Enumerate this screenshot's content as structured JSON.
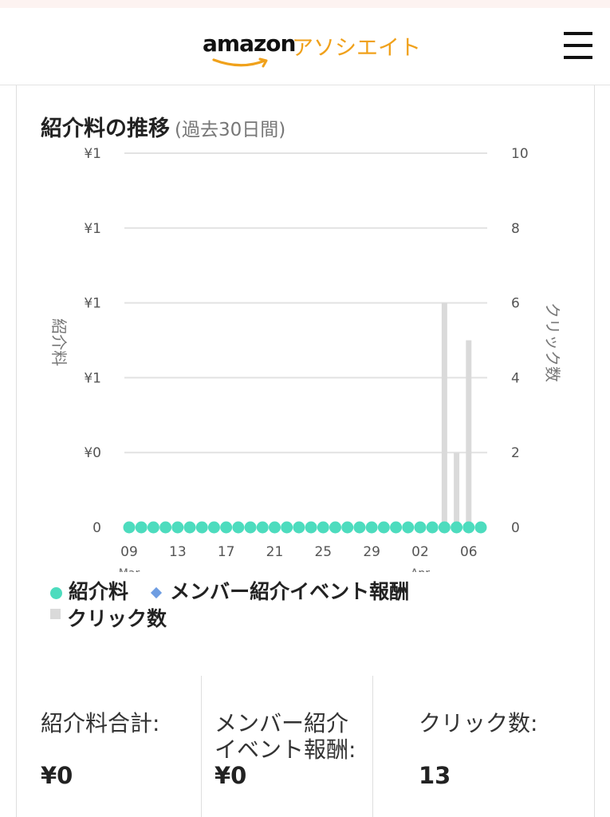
{
  "header": {
    "logo_amazon": "amazon",
    "logo_suffix": "アソシエイト",
    "menu_icon": "hamburger-menu-icon"
  },
  "card": {
    "title": "紹介料の推移",
    "subtitle": "(過去30日間)"
  },
  "chart_data": {
    "type": "bar",
    "x_tick_labels": [
      "09",
      "13",
      "17",
      "21",
      "25",
      "29",
      "02",
      "06"
    ],
    "x_month_labels": [
      "Mar",
      "Apr"
    ],
    "y_left_label": "紹介料",
    "y_left_ticks": [
      "¥1",
      "¥1",
      "¥1",
      "¥1",
      "¥0",
      "0"
    ],
    "y_right_label": "クリック数",
    "y_right_ticks": [
      "10",
      "8",
      "6",
      "4",
      "2",
      "0"
    ],
    "ylim_right": [
      0,
      10
    ],
    "grid": true,
    "legend_position": "bottom",
    "series": [
      {
        "name": "紹介料",
        "kind": "scatter",
        "color": "#4ddcbe",
        "values": [
          0,
          0,
          0,
          0,
          0,
          0,
          0,
          0,
          0,
          0,
          0,
          0,
          0,
          0,
          0,
          0,
          0,
          0,
          0,
          0,
          0,
          0,
          0,
          0,
          0,
          0,
          0,
          0,
          0,
          0
        ]
      },
      {
        "name": "メンバー紹介イベント報酬",
        "kind": "scatter",
        "color": "#6e9de2",
        "values": []
      },
      {
        "name": "クリック数",
        "kind": "bar",
        "color": "#dadada",
        "values": [
          0,
          0,
          0,
          0,
          0,
          0,
          0,
          0,
          0,
          0,
          0,
          0,
          0,
          0,
          0,
          0,
          0,
          0,
          0,
          0,
          0,
          0,
          0,
          0,
          0,
          0,
          6,
          2,
          5,
          0
        ]
      }
    ]
  },
  "stats": [
    {
      "label": "紹介料合計:",
      "value": "¥0"
    },
    {
      "label": "メンバー紹介\nイベント報酬:",
      "value": "¥0"
    },
    {
      "label": "クリック数:",
      "value": "13"
    }
  ]
}
